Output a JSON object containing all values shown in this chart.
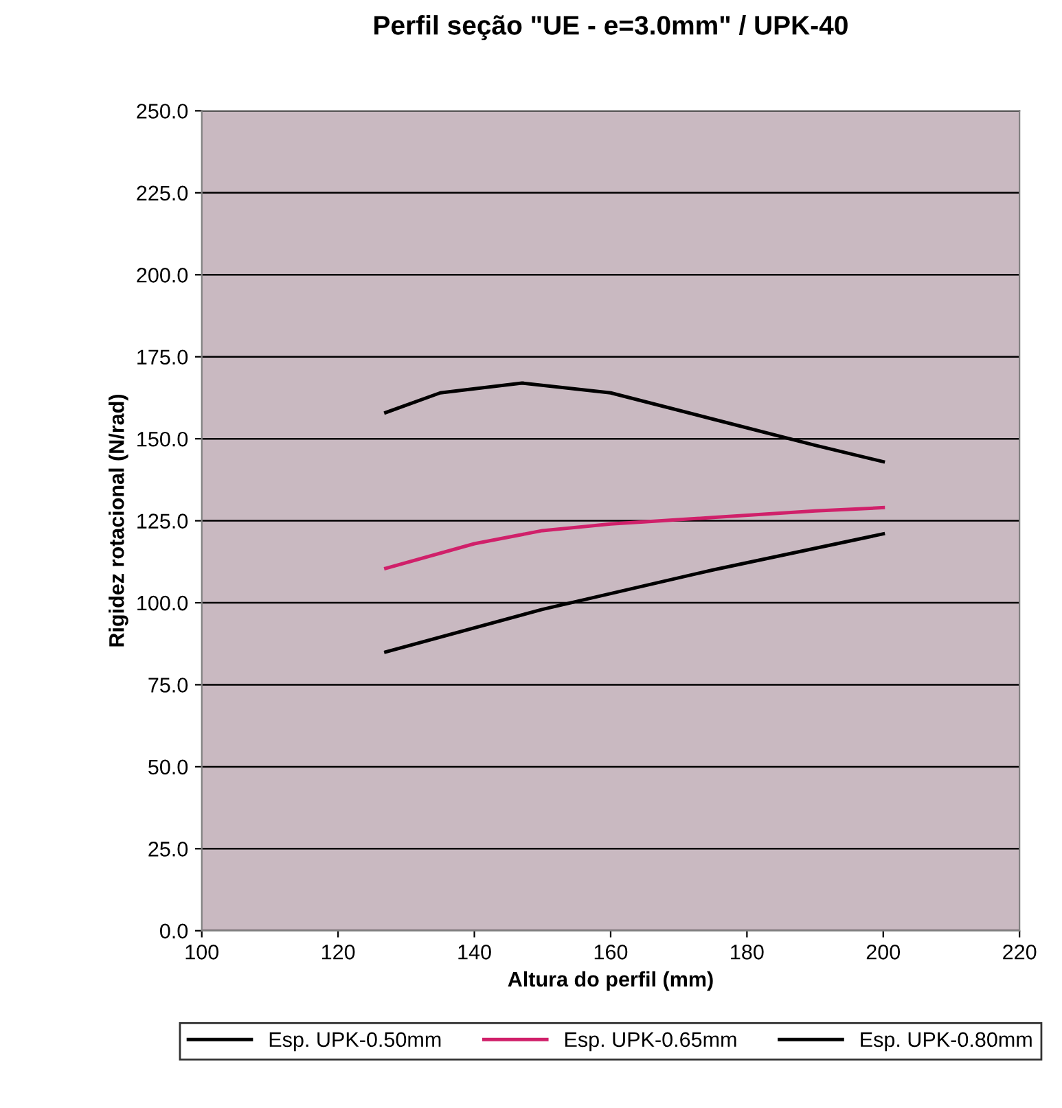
{
  "chart_data": {
    "type": "line",
    "title": "Perfil seção \"UE - e=3.0mm\" / UPK-40",
    "xlabel": "Altura do perfil (mm)",
    "ylabel": "Rigidez rotacional (N/rad)",
    "series": [
      {
        "name": "Esp. UPK-0.50mm",
        "color": "#000000",
        "x": [
          127,
          150,
          175,
          200
        ],
        "values": [
          85,
          98,
          110,
          121
        ]
      },
      {
        "name": "Esp. UPK-0.65mm",
        "color": "#d0206a",
        "x": [
          127,
          140,
          150,
          160,
          175,
          190,
          200
        ],
        "values": [
          110.5,
          118,
          122,
          124,
          126,
          128,
          129
        ]
      },
      {
        "name": "Esp. UPK-0.80mm",
        "color": "#000000",
        "x": [
          127,
          135,
          147,
          160,
          175,
          190,
          200
        ],
        "values": [
          158,
          164,
          167,
          164,
          156,
          148,
          143
        ]
      }
    ],
    "xlim": [
      100,
      220
    ],
    "xticks": [
      100,
      120,
      140,
      160,
      180,
      200,
      220
    ],
    "ylim": [
      0,
      250
    ],
    "yticks": [
      {
        "value": 0,
        "label": "0.0"
      },
      {
        "value": 25,
        "label": "25.0"
      },
      {
        "value": 50,
        "label": "50.0"
      },
      {
        "value": 75,
        "label": "75.0"
      },
      {
        "value": 100,
        "label": "100.0"
      },
      {
        "value": 125,
        "label": "125.0"
      },
      {
        "value": 150,
        "label": "150.0"
      },
      {
        "value": 175,
        "label": "175.0"
      },
      {
        "value": 200,
        "label": "200.0"
      },
      {
        "value": 225,
        "label": "225.0"
      },
      {
        "value": 250,
        "label": "250.0"
      }
    ],
    "grid": "y",
    "legend": "bottom",
    "marker": "none",
    "line_style": "solid"
  }
}
